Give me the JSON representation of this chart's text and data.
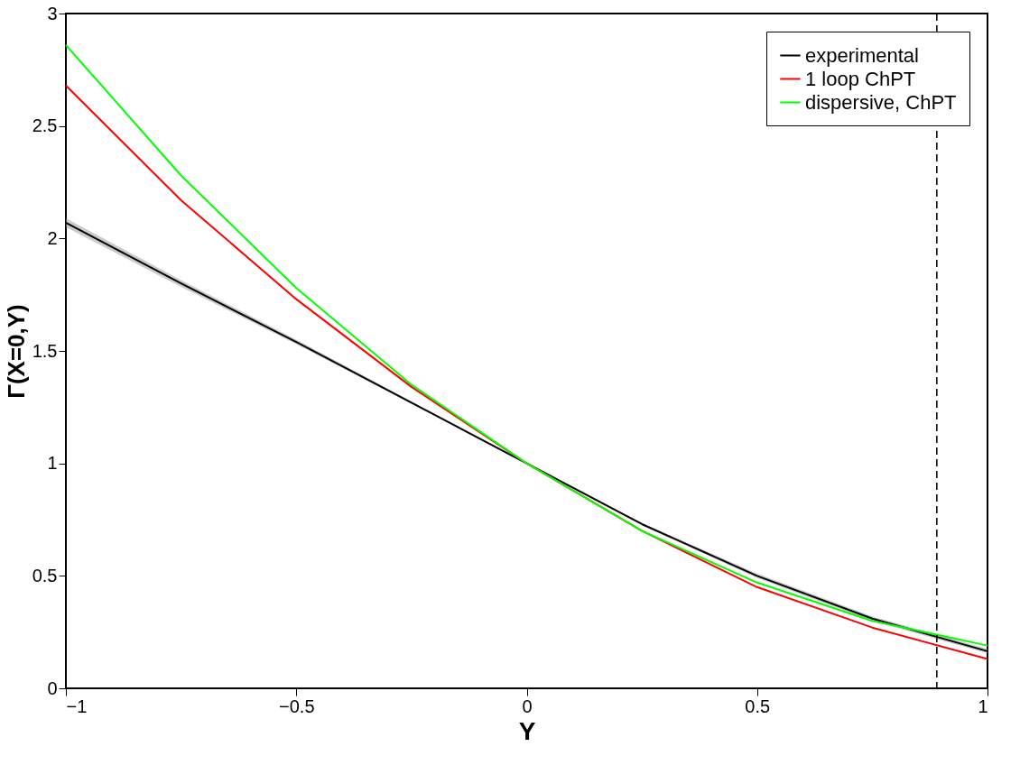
{
  "chart_data": {
    "type": "line",
    "xlabel": "Y",
    "ylabel": "Γ(X=0,Y)",
    "x": [
      -1,
      -0.75,
      -0.5,
      -0.25,
      0,
      0.25,
      0.5,
      0.75,
      1
    ],
    "series": [
      {
        "name": "experimental",
        "color": "#000000",
        "values": [
          2.07,
          1.8,
          1.54,
          1.27,
          1,
          0.73,
          0.5,
          0.31,
          0.165
        ],
        "lower": [
          2.05,
          1.785,
          1.53,
          1.265,
          1,
          0.725,
          0.49,
          0.3,
          0.155
        ],
        "upper": [
          2.09,
          1.815,
          1.55,
          1.275,
          1,
          0.735,
          0.51,
          0.32,
          0.175
        ]
      },
      {
        "name": "1 loop ChPT",
        "color": "#ff0000",
        "values": [
          2.68,
          2.17,
          1.73,
          1.34,
          1,
          0.7,
          0.45,
          0.27,
          0.13
        ]
      },
      {
        "name": "dispersive, ChPT",
        "color": "#00ff00",
        "values": [
          2.86,
          2.28,
          1.78,
          1.35,
          1,
          0.7,
          0.47,
          0.3,
          0.19
        ]
      }
    ],
    "ref_lines": [
      {
        "axis": "x",
        "value": 0.89,
        "color": "#000000",
        "line_style": "dashed"
      }
    ],
    "xlim": [
      -1,
      1
    ],
    "ylim": [
      0,
      3
    ],
    "xticks": [
      -1,
      -0.5,
      0,
      0.5,
      1
    ],
    "yticks": [
      0,
      0.5,
      1,
      1.5,
      2,
      2.5,
      3
    ],
    "grid": false,
    "legend": "top right",
    "line_style": "solid",
    "marker": "none"
  }
}
